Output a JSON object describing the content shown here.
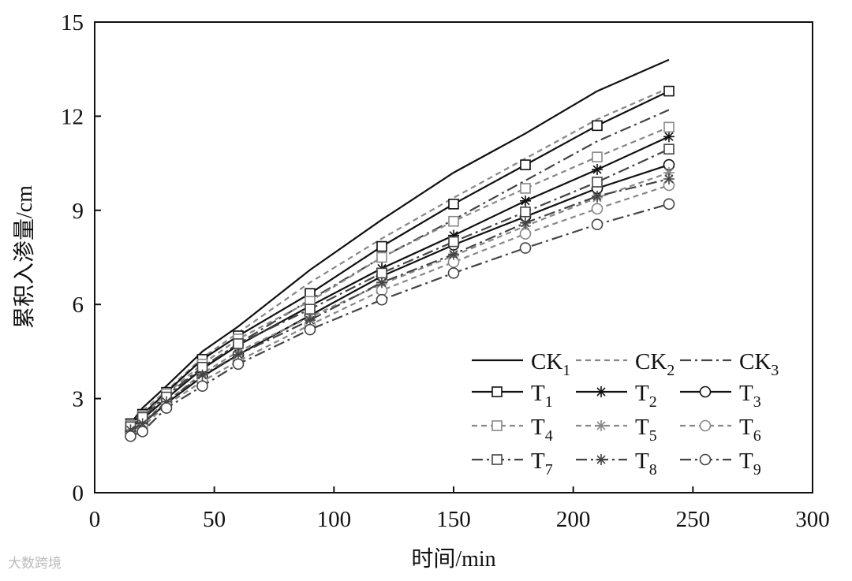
{
  "chart_data": {
    "type": "line",
    "title": "",
    "xlabel": "时间/min",
    "ylabel": "累积入渗量/cm",
    "xlim": [
      0,
      300
    ],
    "ylim": [
      0,
      15
    ],
    "xticks": [
      0,
      50,
      100,
      150,
      200,
      250,
      300
    ],
    "yticks": [
      0,
      3,
      6,
      9,
      12,
      15
    ],
    "grid": false,
    "legend_position": "bottom-right",
    "x": [
      15,
      20,
      30,
      45,
      60,
      90,
      120,
      150,
      180,
      210,
      240
    ],
    "series": [
      {
        "name": "CK",
        "sub": "1",
        "style": "solid",
        "marker": "none",
        "color": "#111111",
        "values": [
          2.2,
          2.7,
          3.4,
          4.5,
          5.3,
          7.1,
          8.7,
          10.2,
          11.45,
          12.8,
          13.8
        ]
      },
      {
        "name": "CK",
        "sub": "2",
        "style": "dash",
        "marker": "none",
        "color": "#888888",
        "values": [
          2.15,
          2.6,
          3.25,
          4.3,
          5.1,
          6.7,
          8.1,
          9.4,
          10.65,
          11.9,
          12.9
        ]
      },
      {
        "name": "CK",
        "sub": "3",
        "style": "dashdot",
        "marker": "none",
        "color": "#444444",
        "values": [
          2.05,
          2.45,
          3.1,
          4.0,
          4.75,
          6.15,
          7.5,
          8.7,
          9.95,
          11.2,
          12.2
        ]
      },
      {
        "name": "T",
        "sub": "1",
        "style": "solid",
        "marker": "square",
        "color": "#111111",
        "values": [
          2.2,
          2.5,
          3.2,
          4.25,
          5.0,
          6.35,
          7.85,
          9.2,
          10.45,
          11.7,
          12.8
        ]
      },
      {
        "name": "T",
        "sub": "2",
        "style": "solid",
        "marker": "star",
        "color": "#111111",
        "values": [
          2.1,
          2.35,
          3.0,
          3.95,
          4.7,
          5.95,
          7.15,
          8.2,
          9.3,
          10.3,
          11.35
        ]
      },
      {
        "name": "T",
        "sub": "3",
        "style": "solid",
        "marker": "circle",
        "color": "#111111",
        "values": [
          1.95,
          2.2,
          2.85,
          3.7,
          4.4,
          5.65,
          6.9,
          7.9,
          8.8,
          9.7,
          10.45
        ]
      },
      {
        "name": "T",
        "sub": "4",
        "style": "dash",
        "marker": "square",
        "color": "#888888",
        "values": [
          2.15,
          2.45,
          3.15,
          4.1,
          4.9,
          6.1,
          7.5,
          8.65,
          9.7,
          10.7,
          11.65
        ]
      },
      {
        "name": "T",
        "sub": "5",
        "style": "dash",
        "marker": "star",
        "color": "#888888",
        "values": [
          2.0,
          2.25,
          2.9,
          3.8,
          4.5,
          5.6,
          6.65,
          7.55,
          8.5,
          9.4,
          10.2
        ]
      },
      {
        "name": "T",
        "sub": "6",
        "style": "dash",
        "marker": "circle",
        "color": "#888888",
        "values": [
          1.9,
          2.1,
          2.8,
          3.55,
          4.2,
          5.35,
          6.45,
          7.35,
          8.25,
          9.05,
          9.8
        ]
      },
      {
        "name": "T",
        "sub": "7",
        "style": "dashdot",
        "marker": "square",
        "color": "#444444",
        "values": [
          2.1,
          2.4,
          3.05,
          4.0,
          4.75,
          5.85,
          7.0,
          8.0,
          8.95,
          9.9,
          10.95
        ]
      },
      {
        "name": "T",
        "sub": "8",
        "style": "dashdot",
        "marker": "star",
        "color": "#444444",
        "values": [
          2.0,
          2.2,
          2.9,
          3.75,
          4.4,
          5.5,
          6.7,
          7.6,
          8.6,
          9.45,
          10.0
        ]
      },
      {
        "name": "T",
        "sub": "9",
        "style": "dashdot",
        "marker": "circle",
        "color": "#444444",
        "values": [
          1.8,
          1.95,
          2.7,
          3.4,
          4.1,
          5.2,
          6.15,
          7.0,
          7.8,
          8.55,
          9.2
        ]
      }
    ]
  },
  "watermark": "大数跨境"
}
